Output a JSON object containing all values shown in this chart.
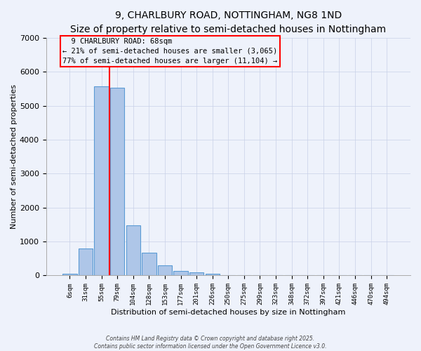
{
  "title": "9, CHARLBURY ROAD, NOTTINGHAM, NG8 1ND",
  "subtitle": "Size of property relative to semi-detached houses in Nottingham",
  "xlabel": "Distribution of semi-detached houses by size in Nottingham",
  "ylabel": "Number of semi-detached properties",
  "categories": [
    "6sqm",
    "31sqm",
    "55sqm",
    "79sqm",
    "104sqm",
    "128sqm",
    "153sqm",
    "177sqm",
    "201sqm",
    "226sqm",
    "250sqm",
    "275sqm",
    "299sqm",
    "323sqm",
    "348sqm",
    "372sqm",
    "397sqm",
    "421sqm",
    "446sqm",
    "470sqm",
    "494sqm"
  ],
  "values": [
    50,
    800,
    5560,
    5530,
    1470,
    670,
    300,
    130,
    85,
    60,
    0,
    0,
    0,
    0,
    0,
    0,
    0,
    0,
    0,
    0,
    0
  ],
  "bar_color": "#aec6e8",
  "bar_edgecolor": "#5b9bd5",
  "property_label": "9 CHARLBURY ROAD: 68sqm",
  "smaller_pct": "21%",
  "smaller_count": "3,065",
  "larger_pct": "77%",
  "larger_count": "11,104",
  "vline_color": "red",
  "annotation_box_edgecolor": "red",
  "background_color": "#eef2fb",
  "grid_color": "#c8d0e8",
  "ylim": [
    0,
    7000
  ],
  "yticks": [
    0,
    1000,
    2000,
    3000,
    4000,
    5000,
    6000,
    7000
  ],
  "title_fontsize": 10,
  "footer_line1": "Contains HM Land Registry data © Crown copyright and database right 2025.",
  "footer_line2": "Contains public sector information licensed under the Open Government Licence v3.0."
}
